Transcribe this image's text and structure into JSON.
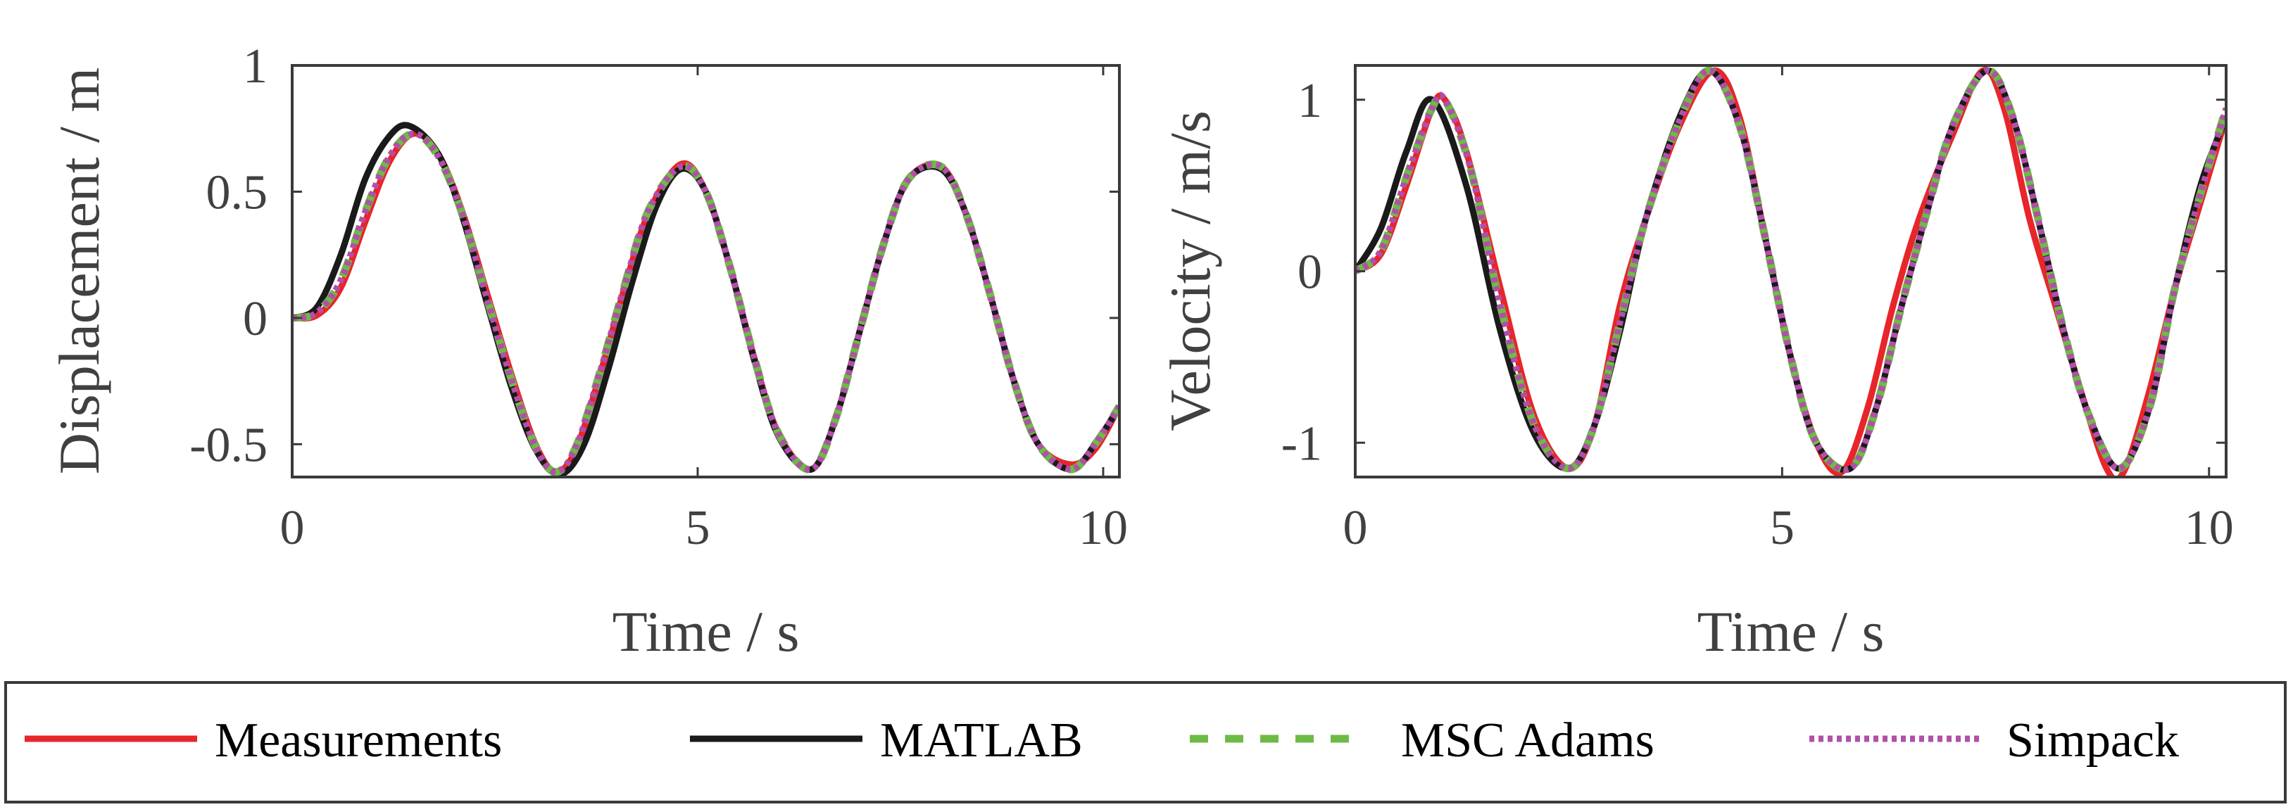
{
  "colors": {
    "measurements": "#e8252b",
    "matlab": "#1a1a1a",
    "msc_adams": "#6dbb45",
    "simpack": "#b050a8",
    "axes": "#3a3a3a",
    "text": "#404040"
  },
  "legend": {
    "placement": "bottom",
    "entries": [
      {
        "key": "measurements",
        "label": "Measurements",
        "style": "solid"
      },
      {
        "key": "matlab",
        "label": "MATLAB",
        "style": "solid"
      },
      {
        "key": "msc_adams",
        "label": "MSC Adams",
        "style": "dashed"
      },
      {
        "key": "simpack",
        "label": "Simpack",
        "style": "dotted"
      }
    ]
  },
  "chart_data": [
    {
      "type": "line",
      "title": "",
      "xlabel": "Time / s",
      "ylabel": "Displacement / m",
      "xlim": [
        0,
        10.2
      ],
      "ylim": [
        -0.63,
        1.0
      ],
      "xticks": [
        0,
        5,
        10
      ],
      "xtick_labels": [
        "0",
        "5",
        "10"
      ],
      "yticks": [
        -0.5,
        0,
        0.5,
        1
      ],
      "ytick_labels": [
        "-0.5",
        "0",
        "0.5",
        "1"
      ],
      "grid": false,
      "series": [
        {
          "key": "measurements",
          "name": "Measurements",
          "x": [
            0,
            0.3,
            0.6,
            0.9,
            1.2,
            1.5,
            1.8,
            2.1,
            2.4,
            2.7,
            3.0,
            3.25,
            3.5,
            3.8,
            4.1,
            4.4,
            4.8,
            5.1,
            5.4,
            5.7,
            6.0,
            6.4,
            6.7,
            7.0,
            7.3,
            7.6,
            8.0,
            8.3,
            8.6,
            8.9,
            9.2,
            9.6,
            9.9,
            10.2
          ],
          "y": [
            0,
            0.01,
            0.12,
            0.38,
            0.62,
            0.73,
            0.65,
            0.42,
            0.1,
            -0.22,
            -0.5,
            -0.61,
            -0.52,
            -0.22,
            0.12,
            0.42,
            0.61,
            0.5,
            0.2,
            -0.16,
            -0.46,
            -0.6,
            -0.4,
            -0.05,
            0.3,
            0.55,
            0.6,
            0.42,
            0.1,
            -0.25,
            -0.5,
            -0.58,
            -0.52,
            -0.35
          ]
        },
        {
          "key": "matlab",
          "name": "MATLAB",
          "x": [
            0,
            0.3,
            0.6,
            0.9,
            1.2,
            1.45,
            1.8,
            2.1,
            2.4,
            2.7,
            3.0,
            3.3,
            3.6,
            3.9,
            4.2,
            4.5,
            4.8,
            5.1,
            5.4,
            5.7,
            6.0,
            6.4,
            6.7,
            7.0,
            7.3,
            7.6,
            8.0,
            8.3,
            8.6,
            8.9,
            9.2,
            9.6,
            9.9,
            10.2
          ],
          "y": [
            0,
            0.04,
            0.25,
            0.55,
            0.72,
            0.76,
            0.65,
            0.4,
            0.06,
            -0.27,
            -0.52,
            -0.62,
            -0.5,
            -0.2,
            0.15,
            0.45,
            0.59,
            0.5,
            0.2,
            -0.17,
            -0.47,
            -0.6,
            -0.4,
            -0.05,
            0.3,
            0.55,
            0.59,
            0.42,
            0.1,
            -0.25,
            -0.5,
            -0.6,
            -0.5,
            -0.35
          ]
        },
        {
          "key": "msc_adams",
          "name": "MSC Adams",
          "x": [
            0,
            0.3,
            0.6,
            0.9,
            1.2,
            1.5,
            1.8,
            2.1,
            2.4,
            2.7,
            3.0,
            3.25,
            3.5,
            3.8,
            4.1,
            4.4,
            4.8,
            5.1,
            5.4,
            5.7,
            6.0,
            6.4,
            6.7,
            7.0,
            7.3,
            7.6,
            8.0,
            8.3,
            8.6,
            8.9,
            9.2,
            9.6,
            9.9,
            10.2
          ],
          "y": [
            0,
            0.02,
            0.15,
            0.42,
            0.64,
            0.73,
            0.64,
            0.41,
            0.08,
            -0.24,
            -0.51,
            -0.61,
            -0.51,
            -0.21,
            0.13,
            0.43,
            0.6,
            0.5,
            0.2,
            -0.16,
            -0.46,
            -0.6,
            -0.4,
            -0.05,
            0.3,
            0.55,
            0.6,
            0.42,
            0.1,
            -0.25,
            -0.5,
            -0.6,
            -0.5,
            -0.35
          ]
        },
        {
          "key": "simpack",
          "name": "Simpack",
          "x": [
            0,
            0.3,
            0.6,
            0.9,
            1.2,
            1.5,
            1.8,
            2.1,
            2.4,
            2.7,
            3.0,
            3.25,
            3.5,
            3.8,
            4.1,
            4.4,
            4.8,
            5.1,
            5.4,
            5.7,
            6.0,
            6.4,
            6.7,
            7.0,
            7.3,
            7.6,
            8.0,
            8.3,
            8.6,
            8.9,
            9.2,
            9.6,
            9.9,
            10.2
          ],
          "y": [
            0,
            0.02,
            0.15,
            0.42,
            0.64,
            0.73,
            0.64,
            0.41,
            0.08,
            -0.24,
            -0.51,
            -0.61,
            -0.51,
            -0.21,
            0.13,
            0.43,
            0.6,
            0.5,
            0.2,
            -0.16,
            -0.46,
            -0.6,
            -0.4,
            -0.05,
            0.3,
            0.55,
            0.6,
            0.42,
            0.1,
            -0.25,
            -0.5,
            -0.6,
            -0.5,
            -0.35
          ]
        }
      ]
    },
    {
      "type": "line",
      "title": "",
      "xlabel": "Time / s",
      "ylabel": "Velocity / m/s",
      "xlim": [
        0,
        10.2
      ],
      "ylim": [
        -1.2,
        1.2
      ],
      "xticks": [
        0,
        5,
        10
      ],
      "xtick_labels": [
        "0",
        "5",
        "10"
      ],
      "yticks": [
        -1,
        0,
        1
      ],
      "ytick_labels": [
        "-1",
        "0",
        "1"
      ],
      "grid": false,
      "series": [
        {
          "key": "measurements",
          "name": "Measurements",
          "x": [
            0,
            0.3,
            0.6,
            0.9,
            1.05,
            1.3,
            1.7,
            2.1,
            2.5,
            2.8,
            3.1,
            3.4,
            3.8,
            4.2,
            4.5,
            4.8,
            5.1,
            5.4,
            5.7,
            6.0,
            6.3,
            6.6,
            7.0,
            7.35,
            7.6,
            7.9,
            8.2,
            8.5,
            8.8,
            9.0,
            9.3,
            9.6,
            9.9,
            10.2
          ],
          "y": [
            0,
            0.1,
            0.5,
            0.95,
            1.0,
            0.7,
            -0.1,
            -0.85,
            -1.15,
            -0.9,
            -0.2,
            0.3,
            0.85,
            1.17,
            0.9,
            0.2,
            -0.5,
            -1.0,
            -1.17,
            -0.8,
            -0.2,
            0.3,
            0.8,
            1.17,
            0.95,
            0.3,
            -0.2,
            -0.7,
            -1.15,
            -1.17,
            -0.7,
            -0.1,
            0.4,
            0.9
          ]
        },
        {
          "key": "matlab",
          "name": "MATLAB",
          "x": [
            0,
            0.3,
            0.6,
            0.9,
            1.3,
            1.7,
            2.1,
            2.5,
            2.8,
            3.1,
            3.4,
            3.8,
            4.15,
            4.5,
            4.8,
            5.1,
            5.4,
            5.8,
            6.1,
            6.4,
            6.7,
            7.0,
            7.4,
            7.7,
            8.0,
            8.3,
            8.6,
            8.95,
            9.3,
            9.6,
            9.9,
            10.2
          ],
          "y": [
            0,
            0.25,
            0.7,
            1.0,
            0.5,
            -0.35,
            -0.95,
            -1.15,
            -0.9,
            -0.35,
            0.3,
            0.9,
            1.17,
            0.85,
            0.2,
            -0.5,
            -1.0,
            -1.15,
            -0.8,
            -0.2,
            0.35,
            0.85,
            1.17,
            0.9,
            0.3,
            -0.35,
            -0.85,
            -1.15,
            -0.8,
            -0.1,
            0.5,
            0.9
          ]
        },
        {
          "key": "msc_adams",
          "name": "MSC Adams",
          "x": [
            0,
            0.3,
            0.6,
            0.9,
            1.05,
            1.35,
            1.7,
            2.1,
            2.5,
            2.8,
            3.1,
            3.4,
            3.8,
            4.15,
            4.5,
            4.8,
            5.1,
            5.4,
            5.8,
            6.1,
            6.4,
            6.7,
            7.0,
            7.4,
            7.7,
            8.0,
            8.3,
            8.6,
            8.95,
            9.3,
            9.6,
            9.9,
            10.2
          ],
          "y": [
            0,
            0.12,
            0.55,
            0.95,
            1.0,
            0.6,
            -0.2,
            -0.9,
            -1.15,
            -0.9,
            -0.3,
            0.3,
            0.88,
            1.17,
            0.85,
            0.2,
            -0.5,
            -1.0,
            -1.15,
            -0.8,
            -0.2,
            0.35,
            0.85,
            1.17,
            0.9,
            0.3,
            -0.35,
            -0.85,
            -1.15,
            -0.8,
            -0.1,
            0.45,
            0.95
          ]
        },
        {
          "key": "simpack",
          "name": "Simpack",
          "x": [
            0,
            0.3,
            0.6,
            0.9,
            1.05,
            1.35,
            1.7,
            2.1,
            2.5,
            2.8,
            3.1,
            3.4,
            3.8,
            4.15,
            4.5,
            4.8,
            5.1,
            5.4,
            5.8,
            6.1,
            6.4,
            6.7,
            7.0,
            7.4,
            7.7,
            8.0,
            8.3,
            8.6,
            8.95,
            9.3,
            9.6,
            9.9,
            10.2
          ],
          "y": [
            0,
            0.12,
            0.55,
            0.95,
            1.0,
            0.6,
            -0.2,
            -0.9,
            -1.15,
            -0.9,
            -0.3,
            0.3,
            0.88,
            1.17,
            0.85,
            0.2,
            -0.5,
            -1.0,
            -1.15,
            -0.8,
            -0.2,
            0.35,
            0.85,
            1.17,
            0.9,
            0.3,
            -0.35,
            -0.85,
            -1.15,
            -0.8,
            -0.1,
            0.45,
            0.95
          ]
        }
      ]
    }
  ]
}
